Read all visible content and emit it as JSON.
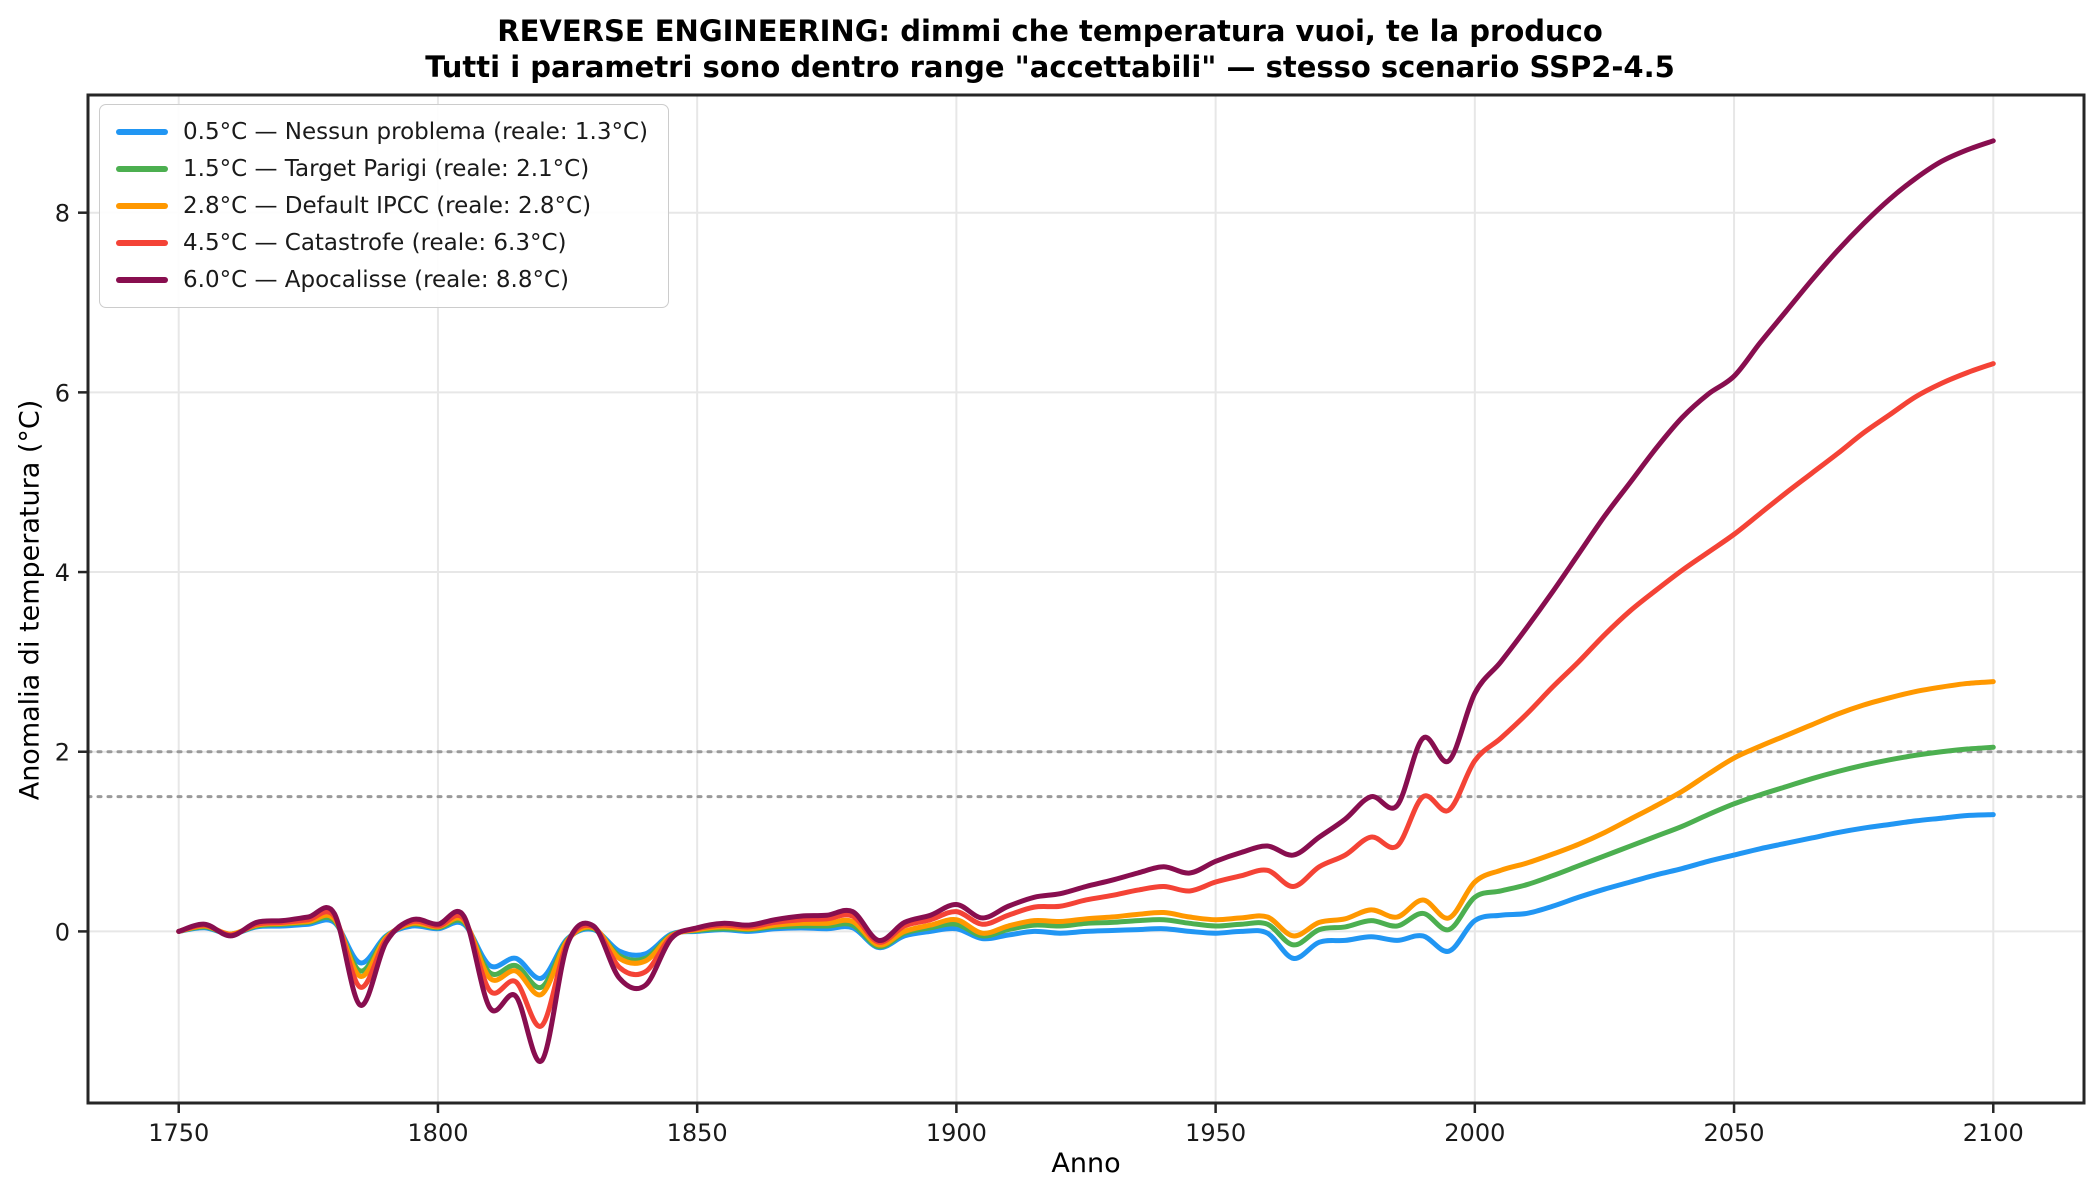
{
  "title": {
    "line1": "REVERSE ENGINEERING: dimmi che temperatura vuoi, te la produco",
    "line2": "Tutti i parametri sono dentro range \"accettabili\" — stesso scenario SSP2-4.5"
  },
  "chart_data": {
    "type": "line",
    "title": "REVERSE ENGINEERING: dimmi che temperatura vuoi, te la produco",
    "subtitle": "Tutti i parametri sono dentro range \"accettabili\" — stesso scenario SSP2-4.5",
    "xlabel": "Anno",
    "ylabel": "Anomalia di temperatura (°C)",
    "xlim": [
      1732.5,
      2117.5
    ],
    "ylim": [
      -1.91,
      9.31
    ],
    "xticks": [
      1750,
      1800,
      1850,
      1900,
      1950,
      2000,
      2050,
      2100
    ],
    "yticks": [
      0,
      2,
      4,
      6,
      8
    ],
    "grid": true,
    "grid_color": "#e7e7e7",
    "threshold_lines": [
      1.5,
      2.0
    ],
    "threshold_color": "#9a9a9a",
    "legend_position": "upper left",
    "x": [
      1750,
      1755,
      1760,
      1765,
      1770,
      1775,
      1780,
      1785,
      1790,
      1795,
      1800,
      1805,
      1810,
      1815,
      1820,
      1825,
      1830,
      1835,
      1840,
      1845,
      1850,
      1855,
      1860,
      1865,
      1870,
      1875,
      1880,
      1885,
      1890,
      1895,
      1900,
      1905,
      1910,
      1915,
      1920,
      1925,
      1930,
      1935,
      1940,
      1945,
      1950,
      1955,
      1960,
      1965,
      1970,
      1975,
      1980,
      1985,
      1990,
      1995,
      2000,
      2005,
      2010,
      2015,
      2020,
      2025,
      2030,
      2035,
      2040,
      2045,
      2050,
      2055,
      2060,
      2065,
      2070,
      2075,
      2080,
      2085,
      2090,
      2095,
      2100
    ],
    "series": [
      {
        "name": "0.5°C — Nessun problema (reale: 1.3°C)",
        "color": "#2196F3",
        "values": [
          0.0,
          0.04,
          -0.03,
          0.05,
          0.06,
          0.08,
          0.1,
          -0.35,
          -0.05,
          0.06,
          0.03,
          0.08,
          -0.38,
          -0.3,
          -0.52,
          -0.08,
          0.02,
          -0.22,
          -0.25,
          -0.03,
          0.0,
          0.02,
          0.0,
          0.03,
          0.04,
          0.03,
          0.04,
          -0.18,
          -0.05,
          0.0,
          0.03,
          -0.08,
          -0.04,
          0.0,
          -0.02,
          0.0,
          0.01,
          0.02,
          0.03,
          0.0,
          -0.02,
          0.0,
          -0.02,
          -0.3,
          -0.12,
          -0.1,
          -0.06,
          -0.1,
          -0.05,
          -0.22,
          0.12,
          0.18,
          0.2,
          0.28,
          0.38,
          0.47,
          0.55,
          0.63,
          0.7,
          0.78,
          0.85,
          0.92,
          0.98,
          1.04,
          1.1,
          1.15,
          1.19,
          1.23,
          1.26,
          1.29,
          1.3
        ]
      },
      {
        "name": "1.5°C — Target Parigi (reale: 2.1°C)",
        "color": "#4CAF50",
        "values": [
          0.0,
          0.05,
          -0.03,
          0.06,
          0.08,
          0.1,
          0.12,
          -0.44,
          -0.06,
          0.08,
          0.04,
          0.1,
          -0.46,
          -0.38,
          -0.62,
          -0.09,
          0.03,
          -0.27,
          -0.3,
          -0.04,
          0.01,
          0.03,
          0.02,
          0.05,
          0.06,
          0.06,
          0.07,
          -0.17,
          -0.02,
          0.04,
          0.08,
          -0.05,
          0.02,
          0.07,
          0.06,
          0.09,
          0.1,
          0.12,
          0.13,
          0.09,
          0.06,
          0.08,
          0.08,
          -0.15,
          0.02,
          0.05,
          0.12,
          0.06,
          0.2,
          0.02,
          0.38,
          0.45,
          0.52,
          0.62,
          0.73,
          0.84,
          0.95,
          1.06,
          1.17,
          1.3,
          1.42,
          1.52,
          1.61,
          1.7,
          1.78,
          1.85,
          1.91,
          1.96,
          2.0,
          2.03,
          2.05
        ]
      },
      {
        "name": "2.8°C — Default IPCC (reale: 2.8°C)",
        "color": "#FF9800",
        "values": [
          0.0,
          0.06,
          -0.03,
          0.07,
          0.09,
          0.11,
          0.14,
          -0.5,
          -0.07,
          0.09,
          0.05,
          0.12,
          -0.52,
          -0.44,
          -0.7,
          -0.1,
          0.04,
          -0.3,
          -0.33,
          -0.05,
          0.02,
          0.05,
          0.03,
          0.07,
          0.09,
          0.09,
          0.11,
          -0.15,
          0.0,
          0.07,
          0.13,
          -0.02,
          0.06,
          0.12,
          0.11,
          0.14,
          0.16,
          0.19,
          0.21,
          0.16,
          0.13,
          0.15,
          0.16,
          -0.05,
          0.1,
          0.14,
          0.24,
          0.16,
          0.35,
          0.15,
          0.55,
          0.68,
          0.76,
          0.86,
          0.97,
          1.1,
          1.25,
          1.4,
          1.56,
          1.75,
          1.93,
          2.06,
          2.18,
          2.3,
          2.42,
          2.52,
          2.6,
          2.67,
          2.72,
          2.76,
          2.78
        ]
      },
      {
        "name": "4.5°C — Catastrofe (reale: 6.3°C)",
        "color": "#F44336",
        "values": [
          0.0,
          0.07,
          -0.04,
          0.08,
          0.1,
          0.13,
          0.17,
          -0.62,
          -0.09,
          0.11,
          0.06,
          0.14,
          -0.66,
          -0.56,
          -1.05,
          -0.12,
          0.05,
          -0.4,
          -0.45,
          -0.06,
          0.03,
          0.07,
          0.05,
          0.1,
          0.13,
          0.14,
          0.17,
          -0.12,
          0.06,
          0.13,
          0.22,
          0.08,
          0.18,
          0.27,
          0.28,
          0.35,
          0.4,
          0.46,
          0.5,
          0.45,
          0.55,
          0.62,
          0.68,
          0.5,
          0.72,
          0.85,
          1.05,
          0.95,
          1.5,
          1.35,
          1.9,
          2.15,
          2.42,
          2.72,
          3.0,
          3.3,
          3.57,
          3.8,
          4.02,
          4.22,
          4.42,
          4.65,
          4.88,
          5.1,
          5.32,
          5.55,
          5.75,
          5.95,
          6.1,
          6.22,
          6.32
        ]
      },
      {
        "name": "6.0°C — Apocalisse (reale: 8.8°C)",
        "color": "#880E4F",
        "values": [
          0.0,
          0.08,
          -0.05,
          0.1,
          0.12,
          0.16,
          0.2,
          -0.82,
          -0.12,
          0.13,
          0.08,
          0.17,
          -0.85,
          -0.72,
          -1.44,
          -0.14,
          0.06,
          -0.52,
          -0.6,
          -0.08,
          0.04,
          0.09,
          0.07,
          0.13,
          0.17,
          0.18,
          0.22,
          -0.1,
          0.1,
          0.18,
          0.3,
          0.15,
          0.28,
          0.38,
          0.42,
          0.5,
          0.57,
          0.65,
          0.72,
          0.65,
          0.78,
          0.88,
          0.95,
          0.85,
          1.05,
          1.25,
          1.5,
          1.4,
          2.15,
          1.9,
          2.65,
          3.0,
          3.38,
          3.78,
          4.2,
          4.62,
          5.0,
          5.38,
          5.72,
          5.98,
          6.18,
          6.55,
          6.9,
          7.25,
          7.58,
          7.88,
          8.15,
          8.38,
          8.57,
          8.7,
          8.8
        ]
      }
    ]
  }
}
